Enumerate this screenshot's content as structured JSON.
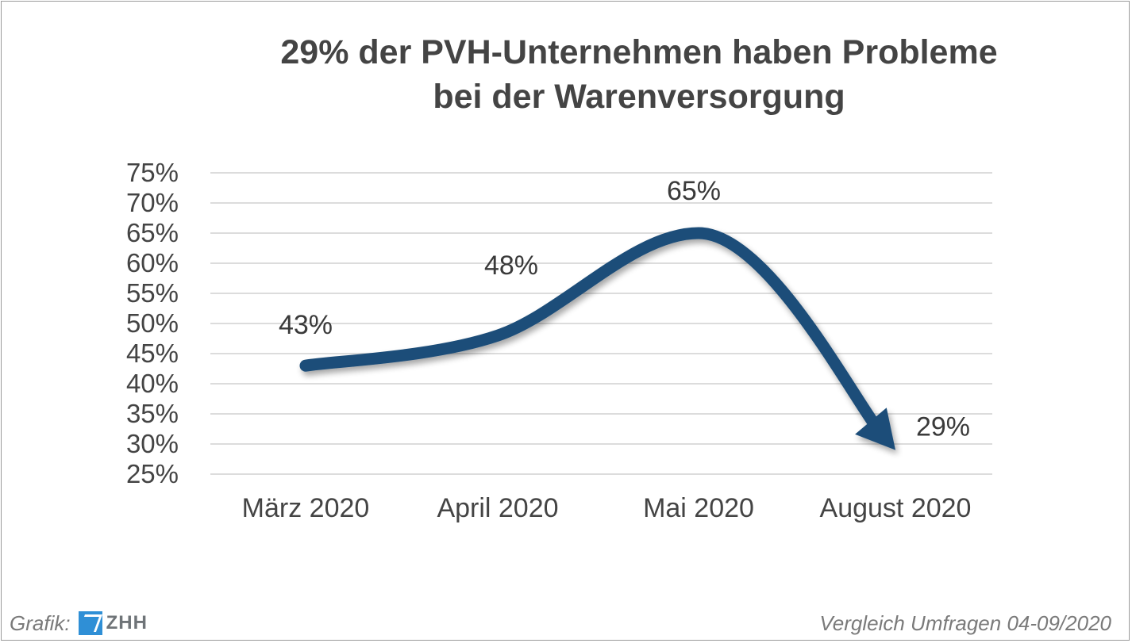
{
  "chart_data": {
    "type": "line",
    "title_lines": [
      "29%  der PVH-Unternehmen haben Probleme",
      "bei der Warenversorgung"
    ],
    "categories": [
      "März 2020",
      "April 2020",
      "Mai 2020",
      "August 2020"
    ],
    "values": [
      43,
      48,
      65,
      29
    ],
    "data_labels": [
      "43%",
      "48%",
      "65%",
      "29%"
    ],
    "y_ticks": [
      "75%",
      "70%",
      "65%",
      "60%",
      "55%",
      "50%",
      "45%",
      "40%",
      "35%",
      "30%",
      "25%"
    ],
    "y_tick_values": [
      75,
      70,
      65,
      60,
      55,
      50,
      45,
      40,
      35,
      30,
      25
    ],
    "ylim": [
      25,
      75
    ],
    "grid": true,
    "line_color": "#1f4e79",
    "end_marker": "arrow"
  },
  "footer": {
    "source_label": "Grafik:",
    "logo_text": "ZHH",
    "note": "Vergleich Umfragen 04-09/2020"
  },
  "colors": {
    "grid": "#dcdcdc",
    "text": "#444444",
    "footer_text": "#7a7a7a",
    "logo_blue": "#2f8fd6"
  }
}
